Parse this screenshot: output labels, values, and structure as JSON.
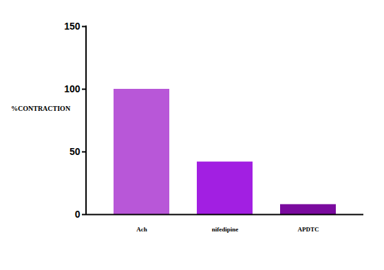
{
  "chart_data": {
    "type": "bar",
    "y_label": "%CONTRACTION",
    "categories": [
      "Ach",
      "nifedipine",
      "APDTC"
    ],
    "values": [
      100,
      42,
      8
    ],
    "colors": [
      "#b857d8",
      "#a21fe2",
      "#7a0a9e"
    ],
    "ylim": [
      0,
      150
    ],
    "yticks": [
      0,
      50,
      100,
      150
    ],
    "grid": false
  }
}
